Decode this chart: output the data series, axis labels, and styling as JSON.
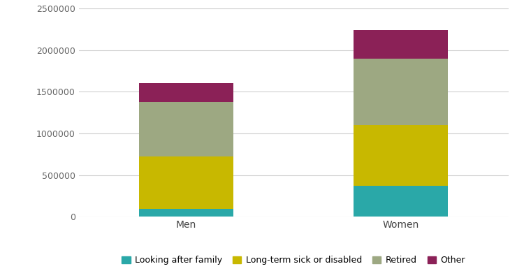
{
  "categories": [
    "Men",
    "Women"
  ],
  "series": {
    "Looking after family": [
      100000,
      375000
    ],
    "Long-term sick or disabled": [
      620000,
      725000
    ],
    "Retired": [
      660000,
      800000
    ],
    "Other": [
      220000,
      340000
    ]
  },
  "colors": {
    "Looking after family": "#2aa8a8",
    "Long-term sick or disabled": "#c8b800",
    "Retired": "#9da882",
    "Other": "#8b2157"
  },
  "ylim": [
    0,
    2500000
  ],
  "yticks": [
    0,
    500000,
    1000000,
    1500000,
    2000000,
    2500000
  ],
  "ytick_labels": [
    "0",
    "500000",
    "1000000",
    "1500000",
    "2000000",
    "2500000"
  ],
  "background_color": "#ffffff",
  "bar_width": 0.22,
  "grid_color": "#d0d0d0",
  "tick_fontsize": 9,
  "legend_fontsize": 9,
  "x_positions": [
    0.25,
    0.75
  ]
}
